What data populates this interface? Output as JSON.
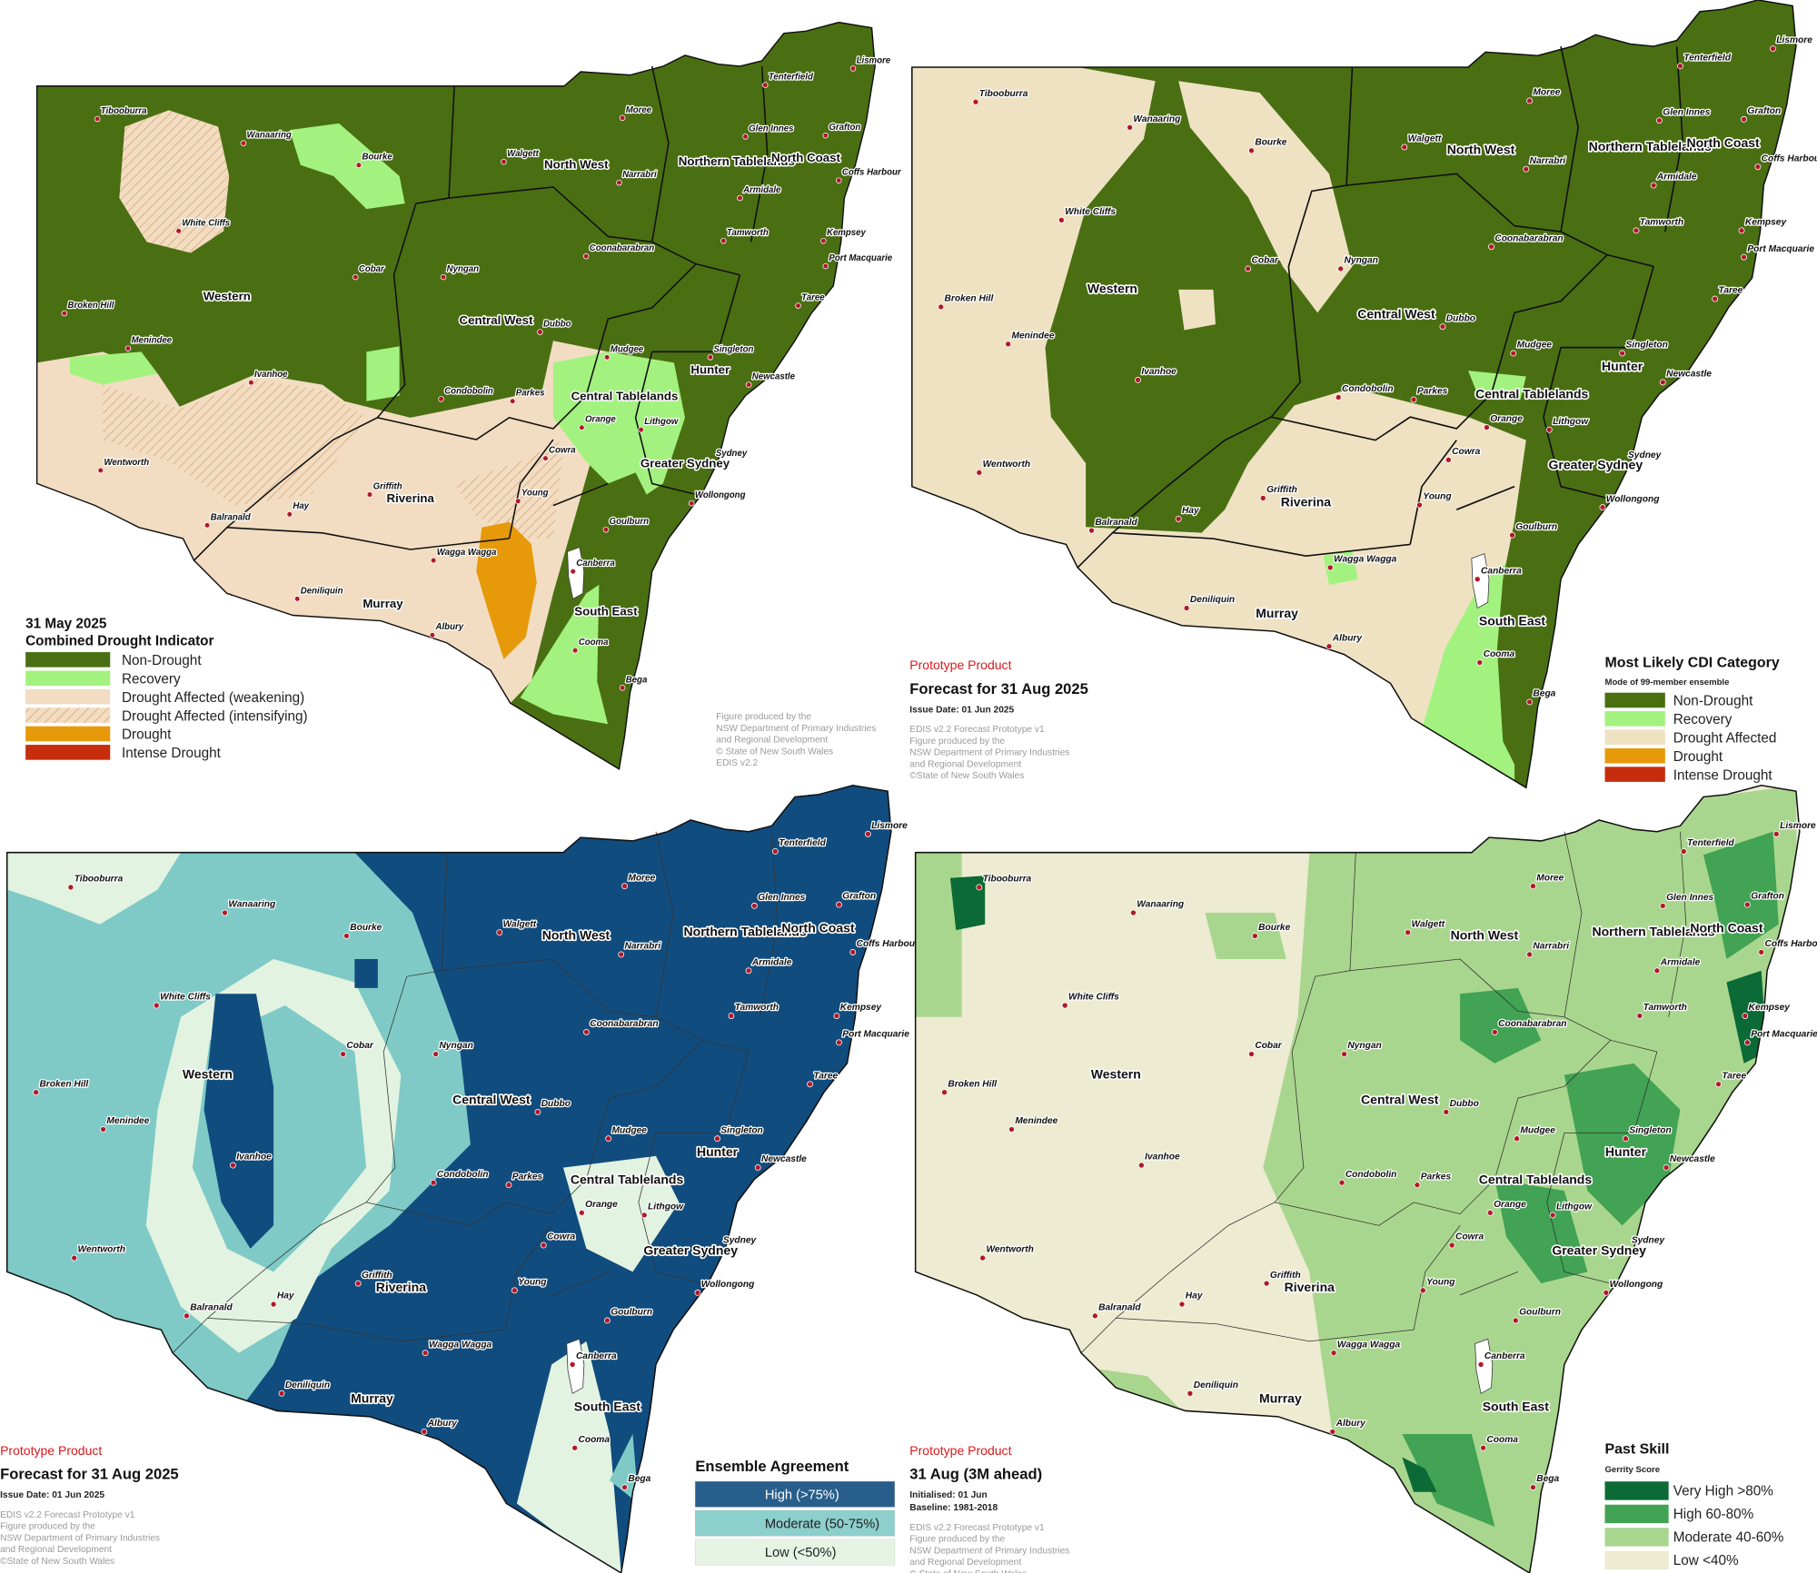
{
  "towns": [
    "Tibooburra",
    "Wanaaring",
    "Bourke",
    "White Cliffs",
    "Cobar",
    "Nyngan",
    "Broken Hill",
    "Menindee",
    "Ivanhoe",
    "Wentworth",
    "Balranald",
    "Hay",
    "Griffith",
    "Deniliquin",
    "Wagga Wagga",
    "Albury",
    "Young",
    "Cowra",
    "Orange",
    "Parkes",
    "Condobolin",
    "Dubbo",
    "Coonabarabran",
    "Walgett",
    "Moree",
    "Narrabri",
    "Tenterfield",
    "Lismore",
    "Glen Innes",
    "Grafton",
    "Coffs Harbour",
    "Armidale",
    "Tamworth",
    "Kempsey",
    "Port Macquarie",
    "Taree",
    "Mudgee",
    "Singleton",
    "Newcastle",
    "Lithgow",
    "Sydney",
    "Wollongong",
    "Goulburn",
    "Canberra",
    "Cooma",
    "Bega"
  ],
  "regions": [
    "Western",
    "Central West",
    "North West",
    "Northern Tablelands",
    "North Coast",
    "Hunter",
    "Central Tablelands",
    "Greater Sydney",
    "Riverina",
    "Murray",
    "South East"
  ],
  "panels": [
    {
      "legend": {
        "title": "31 May 2025",
        "subtitle": "Combined Drought Indicator",
        "items": [
          {
            "label": "Non-Drought",
            "color": "#4a6f12"
          },
          {
            "label": "Recovery",
            "color": "#a3f27f"
          },
          {
            "label": "Drought Affected (weakening)",
            "color": "#f2ddc2"
          },
          {
            "label": "Drought Affected (intensifying)",
            "color": "#f2ddc2",
            "pattern": "hatched"
          },
          {
            "label": "Drought",
            "color": "#e69a0a"
          },
          {
            "label": "Intense Drought",
            "color": "#c62d0c"
          }
        ]
      },
      "notes": [
        "Figure produced by the",
        "NSW Department of Primary Industries",
        "and Regional Development",
        "© State of New South Wales",
        "EDIS v2.2"
      ]
    },
    {
      "header": {
        "tag": "Prototype Product",
        "title": "Forecast for 31 Aug 2025",
        "lines": [
          "Issue Date: 01 Jun 2025"
        ]
      },
      "notes": [
        "EDIS v2.2 Forecast Prototype v1",
        "Figure produced by the",
        "NSW Department of Primary Industries",
        "and Regional Development",
        "©State of New South Wales"
      ],
      "legend": {
        "title": "Most Likely CDI Category",
        "subtitle": "Mode of 99-member ensemble",
        "items": [
          {
            "label": "Non-Drought",
            "color": "#4a6f12"
          },
          {
            "label": "Recovery",
            "color": "#a3f27f"
          },
          {
            "label": "Drought Affected",
            "color": "#efe2c3"
          },
          {
            "label": "Drought",
            "color": "#e69a0a"
          },
          {
            "label": "Intense Drought",
            "color": "#c62d0c"
          }
        ]
      }
    },
    {
      "header": {
        "tag": "Prototype Product",
        "title": "Forecast for 31 Aug 2025",
        "lines": [
          "Issue Date: 01 Jun 2025"
        ]
      },
      "notes": [
        "EDIS v2.2 Forecast Prototype v1",
        "Figure produced by the",
        "NSW Department of Primary Industries",
        "and Regional Development",
        "©State of New South Wales"
      ],
      "legend": {
        "title": "Ensemble Agreement",
        "items": [
          {
            "label": "High (>75%)",
            "color": "#114c7e"
          },
          {
            "label": "Moderate (50-75%)",
            "color": "#7fcac6"
          },
          {
            "label": "Low (<50%)",
            "color": "#e2f3e1"
          }
        ]
      }
    },
    {
      "header": {
        "tag": "Prototype Product",
        "title": "31 Aug (3M ahead)",
        "lines": [
          "Initialised: 01 Jun",
          "Baseline: 1981-2018"
        ]
      },
      "notes": [
        "EDIS v2.2 Forecast Prototype v1",
        "Figure produced by the",
        "NSW Department of Primary Industries",
        "and Regional Development",
        "© State of New South Wales"
      ],
      "legend": {
        "title": "Past Skill",
        "subtitle": "Gerrity Score",
        "items": [
          {
            "label": "Very High >80%",
            "color": "#0b6a35"
          },
          {
            "label": "High 60-80%",
            "color": "#41a353"
          },
          {
            "label": "Moderate 40-60%",
            "color": "#a9d68e"
          },
          {
            "label": "Low <40%",
            "color": "#edebd1"
          }
        ]
      }
    }
  ]
}
